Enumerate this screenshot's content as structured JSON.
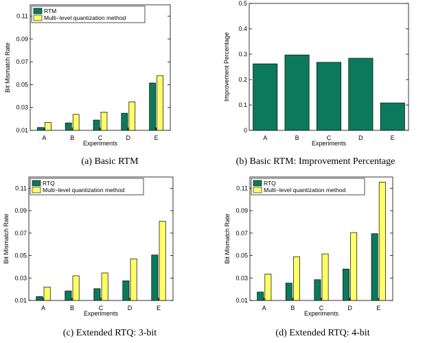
{
  "colors": {
    "series_a": "#0b7a5c",
    "series_b": "#ffff66",
    "outline": "#000000"
  },
  "captions": {
    "a": "(a) Basic RTM",
    "b": "(b) Basic RTM: Improvement Percentage",
    "c": "(c) Extended RTQ: 3-bit",
    "d": "(d) Extended RTQ: 4-bit"
  },
  "chart_data": [
    {
      "id": "a",
      "type": "bar",
      "categories": [
        "A",
        "B",
        "C",
        "D",
        "E"
      ],
      "series": [
        {
          "name": "RTM",
          "values": [
            0.0125,
            0.0165,
            0.019,
            0.025,
            0.0515
          ]
        },
        {
          "name": "Multi−level quantization method",
          "values": [
            0.017,
            0.024,
            0.026,
            0.035,
            0.058
          ]
        }
      ],
      "xlabel": "Experiments",
      "ylabel": "Bit Mismatch Rate",
      "ylim": [
        0.01,
        0.12
      ],
      "yticks": [
        0.01,
        0.03,
        0.05,
        0.07,
        0.09,
        0.11
      ],
      "ytick_labels": [
        "0.01",
        "0.03",
        "0.05",
        "0.07",
        "0.09",
        "0.11"
      ],
      "legend": "top-left"
    },
    {
      "id": "b",
      "type": "bar",
      "categories": [
        "A",
        "B",
        "C",
        "D",
        "E"
      ],
      "series": [
        {
          "values": [
            0.262,
            0.297,
            0.268,
            0.284,
            0.108
          ]
        }
      ],
      "xlabel": "Experiments",
      "ylabel": "Improvement Percentage",
      "ylim": [
        0,
        0.5
      ],
      "yticks": [
        0,
        0.1,
        0.2,
        0.3,
        0.4,
        0.5
      ],
      "ytick_labels": [
        "0",
        "0.1",
        "0.2",
        "0.3",
        "0.4",
        "0.5"
      ]
    },
    {
      "id": "c",
      "type": "bar",
      "categories": [
        "A",
        "B",
        "C",
        "D",
        "E"
      ],
      "series": [
        {
          "name": "RTQ",
          "values": [
            0.0135,
            0.0185,
            0.0205,
            0.0275,
            0.0505
          ]
        },
        {
          "name": "Multi−level quantization method",
          "values": [
            0.022,
            0.032,
            0.0345,
            0.047,
            0.0805
          ]
        }
      ],
      "xlabel": "Experiments",
      "ylabel": "Bit Mismatch Rate",
      "ylim": [
        0.01,
        0.12
      ],
      "yticks": [
        0.01,
        0.03,
        0.05,
        0.07,
        0.09,
        0.11
      ],
      "ytick_labels": [
        "0.01",
        "0.03",
        "0.05",
        "0.07",
        "0.09",
        "0.11"
      ],
      "legend": "top-left"
    },
    {
      "id": "d",
      "type": "bar",
      "categories": [
        "A",
        "B",
        "C",
        "D",
        "E"
      ],
      "series": [
        {
          "name": "RTQ",
          "values": [
            0.0175,
            0.0255,
            0.0285,
            0.038,
            0.0695
          ]
        },
        {
          "name": "Multi−level quantization method",
          "values": [
            0.0335,
            0.049,
            0.0515,
            0.0705,
            0.1155
          ]
        }
      ],
      "xlabel": "Experiments",
      "ylabel": "Bit Mismatch Rate",
      "ylim": [
        0.01,
        0.12
      ],
      "yticks": [
        0.01,
        0.03,
        0.05,
        0.07,
        0.09,
        0.11
      ],
      "ytick_labels": [
        "0.01",
        "0.03",
        "0.05",
        "0.07",
        "0.09",
        "0.11"
      ],
      "legend": "top-left"
    }
  ]
}
